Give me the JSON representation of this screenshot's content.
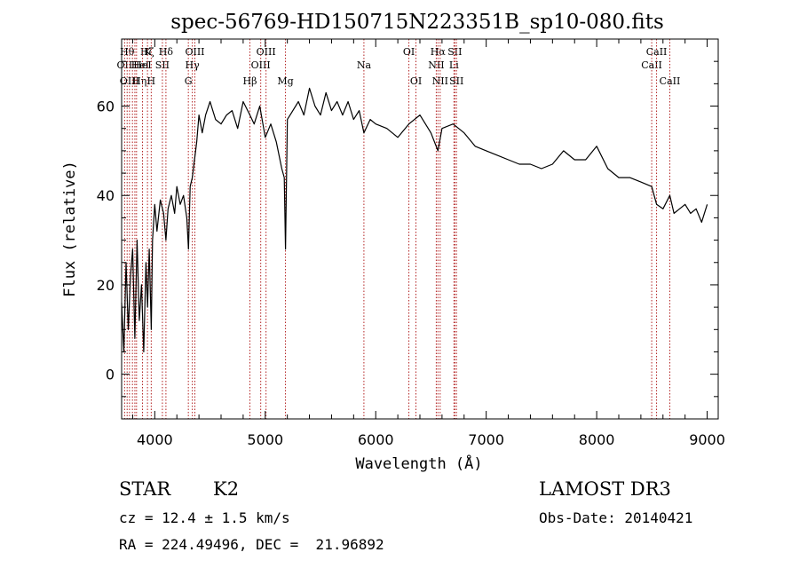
{
  "chart_data": {
    "type": "line",
    "title": "spec-56769-HD150715N223351B_sp10-080.fits",
    "xlabel": "Wavelength (Å)",
    "ylabel": "Flux (relative)",
    "xlim": [
      3700,
      9100
    ],
    "ylim": [
      -10,
      75
    ],
    "x_ticks": [
      4000,
      5000,
      6000,
      7000,
      8000,
      9000
    ],
    "y_ticks": [
      0,
      20,
      40,
      60
    ],
    "series": [
      {
        "name": "flux",
        "x": [
          3700,
          3720,
          3740,
          3760,
          3780,
          3800,
          3820,
          3840,
          3860,
          3880,
          3900,
          3920,
          3935,
          3950,
          3968,
          3980,
          4000,
          4020,
          4050,
          4080,
          4101,
          4120,
          4150,
          4180,
          4200,
          4230,
          4260,
          4290,
          4305,
          4320,
          4340,
          4360,
          4380,
          4400,
          4430,
          4460,
          4500,
          4550,
          4600,
          4650,
          4700,
          4750,
          4800,
          4861,
          4900,
          4950,
          5000,
          5050,
          5100,
          5150,
          5172,
          5183,
          5200,
          5250,
          5300,
          5350,
          5400,
          5450,
          5500,
          5550,
          5600,
          5650,
          5700,
          5750,
          5800,
          5850,
          5893,
          5950,
          6000,
          6100,
          6200,
          6300,
          6400,
          6500,
          6563,
          6600,
          6700,
          6800,
          6900,
          7000,
          7100,
          7200,
          7300,
          7400,
          7500,
          7600,
          7700,
          7800,
          7900,
          8000,
          8100,
          8200,
          8300,
          8400,
          8498,
          8542,
          8600,
          8662,
          8700,
          8800,
          8850,
          8900,
          8950,
          9000
        ],
        "y": [
          16,
          5,
          25,
          10,
          22,
          28,
          8,
          30,
          12,
          20,
          5,
          25,
          15,
          28,
          10,
          30,
          38,
          32,
          39,
          36,
          30,
          37,
          40,
          36,
          42,
          38,
          40,
          35,
          28,
          42,
          44,
          48,
          52,
          58,
          54,
          58,
          61,
          57,
          56,
          58,
          59,
          55,
          61,
          58,
          56,
          60,
          53,
          56,
          52,
          46,
          44,
          28,
          57,
          59,
          61,
          58,
          64,
          60,
          58,
          63,
          59,
          61,
          58,
          61,
          57,
          59,
          54,
          57,
          56,
          55,
          53,
          56,
          58,
          54,
          50,
          55,
          56,
          54,
          51,
          50,
          49,
          48,
          47,
          47,
          46,
          47,
          50,
          48,
          48,
          51,
          46,
          44,
          44,
          43,
          42,
          38,
          37,
          40,
          36,
          38,
          36,
          37,
          34,
          38
        ]
      }
    ],
    "line_markers": [
      {
        "wl": 3727,
        "label": "OII",
        "row": 2,
        "dx": 0
      },
      {
        "wl": 3750,
        "label": "Hθ",
        "row": 1,
        "dx": 0
      },
      {
        "wl": 3771,
        "label": "OIII",
        "row": 3,
        "dx": 0
      },
      {
        "wl": 3798,
        "label": "Hη",
        "row": 3,
        "dx": 8
      },
      {
        "wl": 3820,
        "label": "HeI",
        "row": 2,
        "dx": 6
      },
      {
        "wl": 3835,
        "label": "Hζ",
        "row": 1,
        "dx": 12
      },
      {
        "wl": 3889,
        "label": "HeI",
        "row": 2,
        "dx": 0
      },
      {
        "wl": 3934,
        "label": "K",
        "row": 1,
        "dx": 0
      },
      {
        "wl": 3968,
        "label": "H",
        "row": 3,
        "dx": 0
      },
      {
        "wl": 4069,
        "label": "SII",
        "row": 2,
        "dx": 0
      },
      {
        "wl": 4101,
        "label": "Hδ",
        "row": 1,
        "dx": 0
      },
      {
        "wl": 4304,
        "label": "G",
        "row": 3,
        "dx": 0
      },
      {
        "wl": 4340,
        "label": "Hγ",
        "row": 2,
        "dx": 0
      },
      {
        "wl": 4363,
        "label": "OIII",
        "row": 1,
        "dx": 0
      },
      {
        "wl": 4861,
        "label": "Hβ",
        "row": 3,
        "dx": 0
      },
      {
        "wl": 4959,
        "label": "OIII",
        "row": 2,
        "dx": 0
      },
      {
        "wl": 5007,
        "label": "OIII",
        "row": 1,
        "dx": 0
      },
      {
        "wl": 5183,
        "label": "Mg",
        "row": 3,
        "dx": 0
      },
      {
        "wl": 5893,
        "label": "Na",
        "row": 2,
        "dx": 0
      },
      {
        "wl": 6300,
        "label": "OI",
        "row": 1,
        "dx": 0
      },
      {
        "wl": 6364,
        "label": "OI",
        "row": 3,
        "dx": 0
      },
      {
        "wl": 6548,
        "label": "NII",
        "row": 2,
        "dx": 0
      },
      {
        "wl": 6563,
        "label": "Hα",
        "row": 1,
        "dx": 0
      },
      {
        "wl": 6583,
        "label": "NII",
        "row": 3,
        "dx": 0
      },
      {
        "wl": 6708,
        "label": "Li",
        "row": 2,
        "dx": 0
      },
      {
        "wl": 6716,
        "label": "SII",
        "row": 1,
        "dx": 0
      },
      {
        "wl": 6731,
        "label": "SII",
        "row": 3,
        "dx": 0
      },
      {
        "wl": 8498,
        "label": "CaII",
        "row": 2,
        "dx": 0
      },
      {
        "wl": 8542,
        "label": "CaII",
        "row": 1,
        "dx": 0
      },
      {
        "wl": 8662,
        "label": "CaII",
        "row": 3,
        "dx": 0
      }
    ]
  },
  "info": {
    "object_class": "STAR",
    "subclass": "K2",
    "survey": "LAMOST DR3",
    "cz": "cz = 12.4 ± 1.5 km/s",
    "obs_date": "Obs-Date: 20140421",
    "coords": "RA = 224.49496, DEC =  21.96892"
  },
  "colors": {
    "line_marker": "#b22222",
    "spectrum": "#000000"
  }
}
